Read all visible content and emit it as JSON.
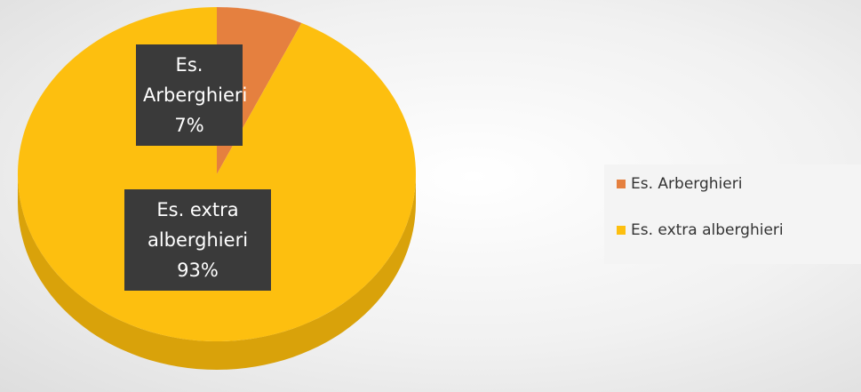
{
  "chart_data": {
    "type": "pie",
    "categories": [
      "Es. Arberghieri",
      "Es. extra alberghieri"
    ],
    "values": [
      7,
      93
    ],
    "value_labels": [
      "7%",
      "93%"
    ],
    "colors": [
      "#e5803f",
      "#fdbf0f"
    ]
  }
}
